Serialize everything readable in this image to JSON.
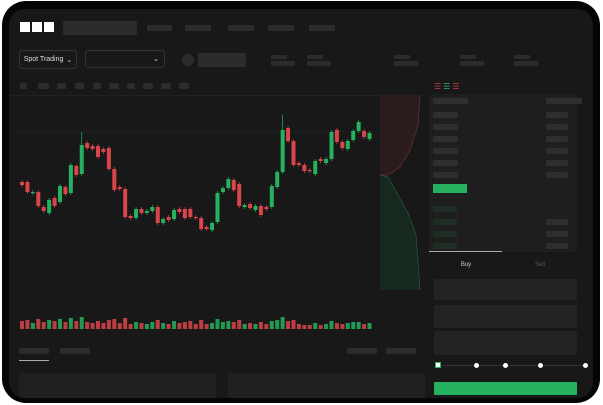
{
  "brand": {
    "logo": "OKX"
  },
  "header": {
    "market_selector": "Spot Trading",
    "pair_selector_icon": "chevron-down-icon"
  },
  "order_form": {
    "tabs": [
      {
        "label": "Buy",
        "active": true
      },
      {
        "label": "Sell",
        "active": false
      }
    ],
    "slider_percent": 0
  },
  "colors": {
    "up": "#25b160",
    "down": "#d9454a",
    "background": "#181818"
  },
  "chart_data": {
    "type": "candlestick",
    "candles": [
      [
        118,
        115
      ],
      [
        118,
        108
      ],
      [
        107,
        108
      ],
      [
        108,
        94
      ],
      [
        93,
        89
      ],
      [
        87,
        100
      ],
      [
        102,
        94
      ],
      [
        98,
        114
      ],
      [
        113,
        106
      ],
      [
        107,
        135
      ],
      [
        134,
        125
      ],
      [
        126,
        155,
        168
      ],
      [
        157,
        152
      ],
      [
        154,
        151
      ],
      [
        154,
        143
      ],
      [
        151,
        148
      ],
      [
        152,
        131
      ],
      [
        131,
        110
      ],
      [
        113,
        111
      ],
      [
        111,
        83
      ],
      [
        84,
        82
      ],
      [
        82,
        91
      ],
      [
        91,
        87
      ],
      [
        87,
        89
      ],
      [
        89,
        93
      ],
      [
        93,
        77
      ],
      [
        77,
        81
      ],
      [
        83,
        80
      ],
      [
        81,
        90
      ],
      [
        91,
        88
      ],
      [
        91,
        82
      ],
      [
        91,
        83
      ],
      [
        83,
        82
      ],
      [
        82,
        71
      ],
      [
        73,
        71
      ],
      [
        70,
        77
      ],
      [
        78,
        107
      ],
      [
        108,
        112
      ],
      [
        112,
        121
      ],
      [
        120,
        110
      ],
      [
        116,
        94
      ],
      [
        93,
        95
      ],
      [
        96,
        92
      ],
      [
        90,
        94
      ],
      [
        94,
        85
      ],
      [
        93,
        91
      ],
      [
        93,
        114
      ],
      [
        113,
        128
      ],
      [
        128,
        170,
        185
      ],
      [
        172,
        159
      ],
      [
        159,
        135
      ],
      [
        137,
        135
      ],
      [
        135,
        129
      ],
      [
        130,
        129
      ],
      [
        126,
        139
      ],
      [
        141,
        139
      ],
      [
        137,
        141
      ],
      [
        141,
        168
      ],
      [
        170,
        158
      ],
      [
        158,
        152
      ],
      [
        151,
        159
      ],
      [
        160,
        169
      ],
      [
        169,
        178
      ],
      [
        169,
        163
      ],
      [
        161,
        167
      ]
    ],
    "volume": [
      8,
      9,
      6,
      10,
      7,
      9,
      8,
      10,
      7,
      11,
      8,
      12,
      7,
      6,
      8,
      6,
      9,
      10,
      6,
      11,
      5,
      7,
      6,
      5,
      7,
      9,
      6,
      5,
      8,
      6,
      7,
      8,
      5,
      9,
      5,
      6,
      10,
      7,
      8,
      7,
      9,
      5,
      6,
      5,
      7,
      5,
      8,
      9,
      12,
      8,
      9,
      5,
      4,
      4,
      6,
      4,
      5,
      8,
      6,
      5,
      6,
      7,
      7,
      5,
      6
    ]
  }
}
